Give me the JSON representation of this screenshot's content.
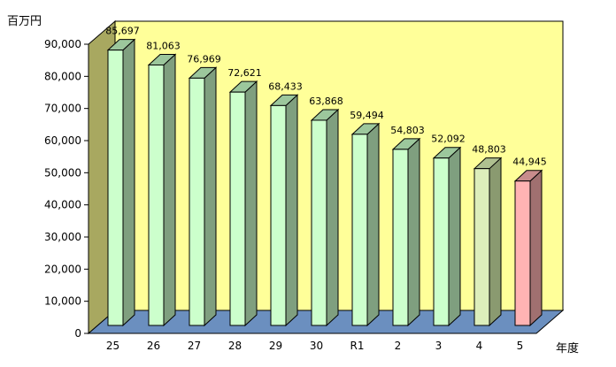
{
  "chart_data": {
    "type": "bar",
    "y_unit_label": "百万円",
    "x_unit_label": "年度",
    "categories": [
      "25",
      "26",
      "27",
      "28",
      "29",
      "30",
      "R1",
      "2",
      "3",
      "4",
      "5"
    ],
    "values": [
      85697,
      81063,
      76969,
      72621,
      68433,
      63868,
      59494,
      54803,
      52092,
      48803,
      44945
    ],
    "value_labels": [
      "85,697",
      "81,063",
      "76,969",
      "72,621",
      "68,433",
      "63,868",
      "59,494",
      "54,803",
      "52,092",
      "48,803",
      "44,945"
    ],
    "ylim": [
      0,
      90000
    ],
    "y_ticks": [
      "0",
      "10,000",
      "20,000",
      "30,000",
      "40,000",
      "50,000",
      "60,000",
      "70,000",
      "80,000",
      "90,000"
    ],
    "grid": false,
    "legend": "none",
    "colors": {
      "back_wall": "#FFFF99",
      "side_wall": "#A8A860",
      "floor": "#6B8FBF",
      "bar_front": [
        "#CCFFCC",
        "#CCFFCC",
        "#CCFFCC",
        "#CCFFCC",
        "#CCFFCC",
        "#CCFFCC",
        "#CCFFCC",
        "#CCFFCC",
        "#CCFFCC",
        "#DDEEBB",
        "#FFB3B3"
      ],
      "bar_side": [
        "#7F9F7F",
        "#7F9F7F",
        "#7F9F7F",
        "#7F9F7F",
        "#7F9F7F",
        "#7F9F7F",
        "#7F9F7F",
        "#7F9F7F",
        "#7F9F7F",
        "#8A9A70",
        "#A07070"
      ],
      "bar_top": [
        "#9CC79C",
        "#9CC79C",
        "#9CC79C",
        "#9CC79C",
        "#9CC79C",
        "#9CC79C",
        "#9CC79C",
        "#9CC79C",
        "#9CC79C",
        "#AFC090",
        "#C88C8C"
      ]
    }
  }
}
